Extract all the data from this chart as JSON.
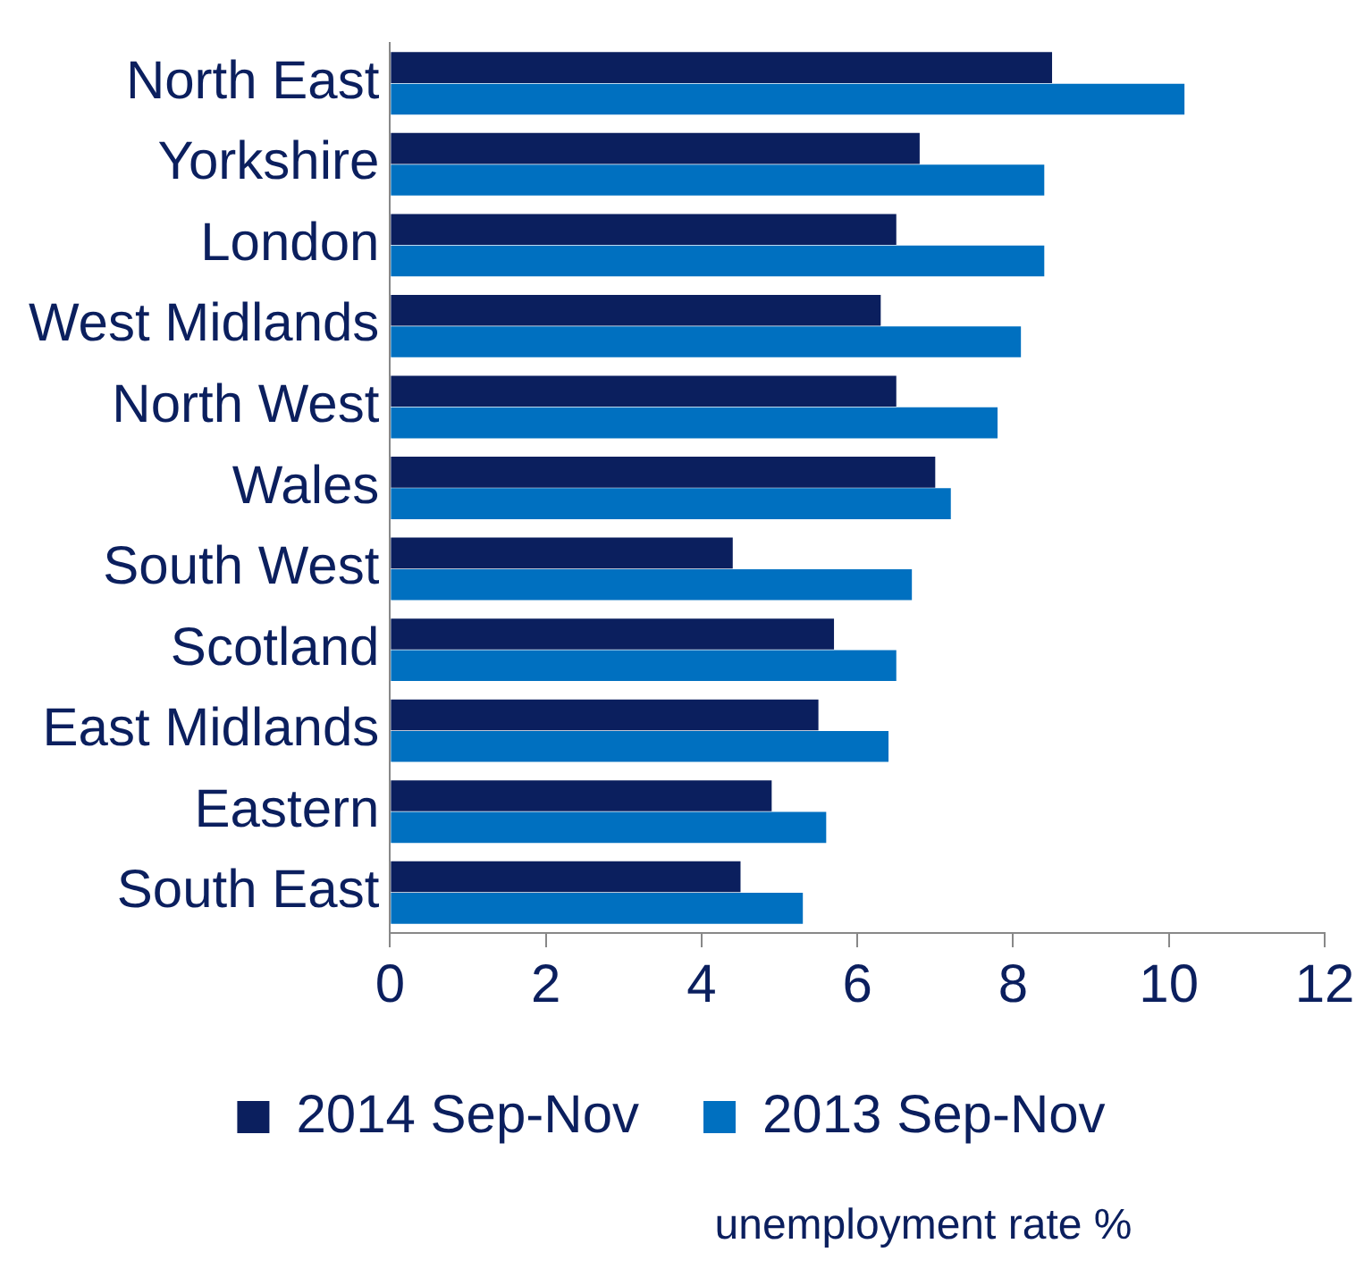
{
  "chart_data": {
    "type": "bar",
    "orientation": "horizontal",
    "xlabel": "unemployment rate %",
    "categories": [
      "North East",
      "Yorkshire",
      "London",
      "West Midlands",
      "North West",
      "Wales",
      "South West",
      "Scotland",
      "East Midlands",
      "Eastern",
      "South East"
    ],
    "series": [
      {
        "name": "2014 Sep-Nov",
        "color": "#0b1f5e",
        "values": [
          8.5,
          6.8,
          6.5,
          6.3,
          6.5,
          7.0,
          4.4,
          5.7,
          5.5,
          4.9,
          4.5
        ]
      },
      {
        "name": "2013 Sep-Nov",
        "color": "#0070c0",
        "values": [
          10.2,
          8.4,
          8.4,
          8.1,
          7.8,
          7.2,
          6.7,
          6.5,
          6.4,
          5.6,
          5.3
        ]
      }
    ],
    "xlim": [
      0,
      12
    ],
    "xticks": [
      0,
      2,
      4,
      6,
      8,
      10,
      12
    ],
    "grid": false,
    "legend": "bottom"
  }
}
